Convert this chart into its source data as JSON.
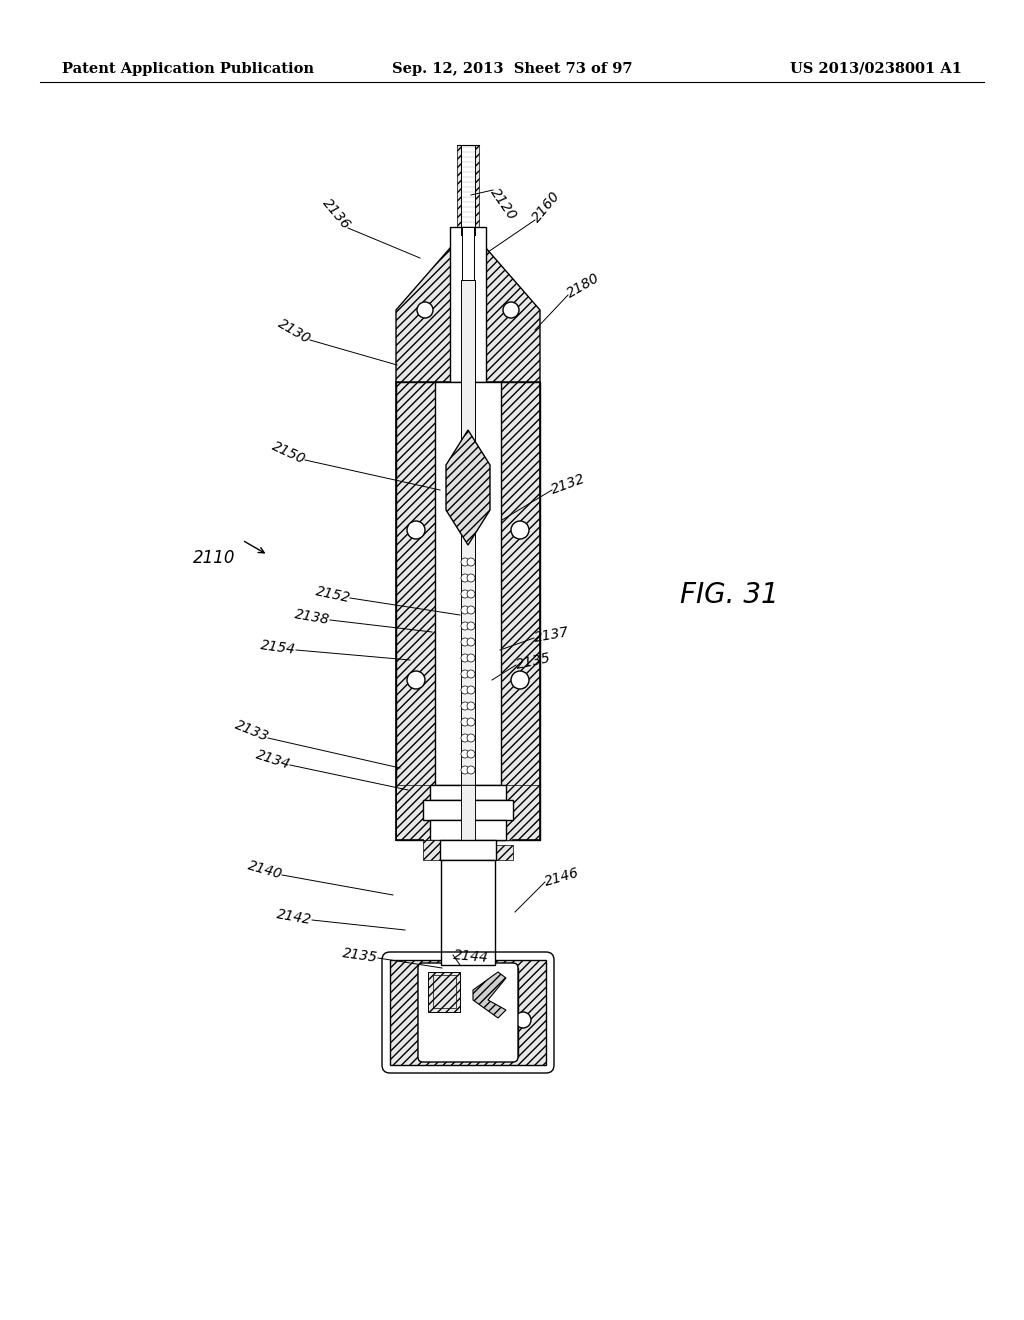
{
  "background_color": "#ffffff",
  "header_left": "Patent Application Publication",
  "header_center": "Sep. 12, 2013  Sheet 73 of 97",
  "header_right": "US 2013/0238001 A1",
  "figure_label": "FIG. 31",
  "header_fontsize": 10.5,
  "fig_label_fontsize": 20,
  "label_fontsize": 10,
  "ref_fontsize": 12
}
